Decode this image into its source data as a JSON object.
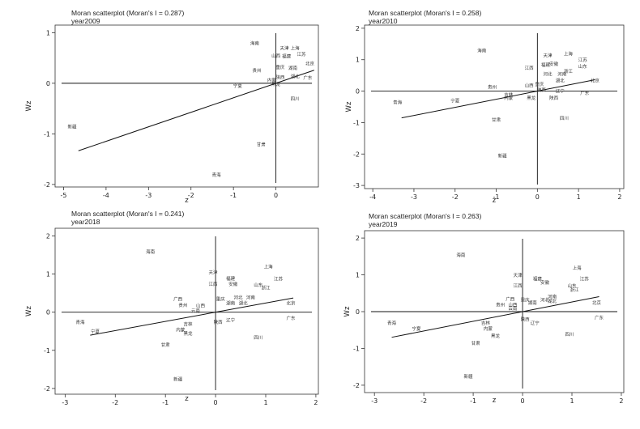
{
  "chart_data": [
    {
      "type": "scatter",
      "title": "Moran scatterplot (Moran's I = 0.287)",
      "subtitle": "year2009",
      "xlabel": "z",
      "ylabel": "Wz",
      "xlim": [
        -5.2,
        1.0
      ],
      "ylim": [
        -2.05,
        1.15
      ],
      "xticks": [
        -5,
        -4,
        -3,
        -2,
        -1,
        0
      ],
      "yticks": [
        -2,
        -1,
        0,
        1
      ],
      "regression": {
        "slope": 0.287,
        "x_range": [
          -4.65,
          0.9
        ]
      },
      "points": [
        {
          "label": "海南",
          "x": -0.5,
          "y": 0.8
        },
        {
          "label": "天津",
          "x": 0.2,
          "y": 0.7
        },
        {
          "label": "上海",
          "x": 0.45,
          "y": 0.7
        },
        {
          "label": "江苏",
          "x": 0.6,
          "y": 0.58
        },
        {
          "label": "山西",
          "x": 0.0,
          "y": 0.55
        },
        {
          "label": "福建",
          "x": 0.25,
          "y": 0.54
        },
        {
          "label": "北京",
          "x": 0.8,
          "y": 0.4
        },
        {
          "label": "贵州",
          "x": -0.45,
          "y": 0.26
        },
        {
          "label": "重庆",
          "x": 0.1,
          "y": 0.33
        },
        {
          "label": "湖南",
          "x": 0.4,
          "y": 0.31
        },
        {
          "label": "陕西",
          "x": 0.1,
          "y": 0.13
        },
        {
          "label": "湖北",
          "x": 0.45,
          "y": 0.14
        },
        {
          "label": "广东",
          "x": 0.75,
          "y": 0.12
        },
        {
          "label": "宁夏",
          "x": -0.9,
          "y": -0.04
        },
        {
          "label": "内蒙",
          "x": -0.1,
          "y": 0.07
        },
        {
          "label": "黑龙",
          "x": 0.0,
          "y": -0.01
        },
        {
          "label": "四川",
          "x": 0.45,
          "y": -0.3
        },
        {
          "label": "新疆",
          "x": -4.8,
          "y": -0.85
        },
        {
          "label": "甘肃",
          "x": -0.35,
          "y": -1.2
        },
        {
          "label": "青海",
          "x": -1.4,
          "y": -1.8
        }
      ]
    },
    {
      "type": "scatter",
      "title": "Moran scatterplot (Moran's I = 0.258)",
      "subtitle": "year2010",
      "xlabel": "z",
      "ylabel": "Wz",
      "xlim": [
        -4.2,
        2.1
      ],
      "ylim": [
        -3.1,
        2.1
      ],
      "xticks": [
        -4,
        -3,
        -2,
        -1,
        0,
        1,
        2
      ],
      "yticks": [
        -3,
        -2,
        -1,
        0,
        1,
        2
      ],
      "regression": {
        "slope": 0.258,
        "x_range": [
          -3.3,
          1.4
        ]
      },
      "points": [
        {
          "label": "海南",
          "x": -1.35,
          "y": 1.3
        },
        {
          "label": "天津",
          "x": 0.25,
          "y": 1.15
        },
        {
          "label": "上海",
          "x": 0.75,
          "y": 1.2
        },
        {
          "label": "江苏",
          "x": 1.1,
          "y": 1.0
        },
        {
          "label": "安徽",
          "x": 0.4,
          "y": 0.88
        },
        {
          "label": "福建",
          "x": 0.2,
          "y": 0.85
        },
        {
          "label": "山东",
          "x": 1.1,
          "y": 0.8
        },
        {
          "label": "浙江",
          "x": 0.75,
          "y": 0.65
        },
        {
          "label": "江西",
          "x": -0.2,
          "y": 0.75
        },
        {
          "label": "河北",
          "x": 0.25,
          "y": 0.55
        },
        {
          "label": "河南",
          "x": 0.6,
          "y": 0.55
        },
        {
          "label": "北京",
          "x": 1.4,
          "y": 0.35
        },
        {
          "label": "湖北",
          "x": 0.55,
          "y": 0.35
        },
        {
          "label": "山西",
          "x": -0.2,
          "y": 0.2
        },
        {
          "label": "重庆",
          "x": 0.05,
          "y": 0.23
        },
        {
          "label": "贵州",
          "x": -1.1,
          "y": 0.15
        },
        {
          "label": "陕西",
          "x": 0.1,
          "y": 0.05
        },
        {
          "label": "辽宁",
          "x": 0.55,
          "y": 0.02
        },
        {
          "label": "广东",
          "x": 1.15,
          "y": -0.05
        },
        {
          "label": "吉林",
          "x": -0.7,
          "y": -0.1
        },
        {
          "label": "内蒙",
          "x": -0.7,
          "y": -0.2
        },
        {
          "label": "黑龙",
          "x": -0.15,
          "y": -0.2
        },
        {
          "label": "陕西",
          "x": 0.4,
          "y": -0.2
        },
        {
          "label": "宁夏",
          "x": -2.0,
          "y": -0.3
        },
        {
          "label": "青海",
          "x": -3.4,
          "y": -0.35
        },
        {
          "label": "四川",
          "x": 0.65,
          "y": -0.85
        },
        {
          "label": "甘肃",
          "x": -1.0,
          "y": -0.9
        },
        {
          "label": "新疆",
          "x": -0.85,
          "y": -2.05
        }
      ]
    },
    {
      "type": "scatter",
      "title": "Moran scatterplot (Moran's I = 0.241)",
      "subtitle": "year2018",
      "xlabel": "z",
      "ylabel": "Wz",
      "xlim": [
        -3.2,
        2.05
      ],
      "ylim": [
        -2.15,
        2.2
      ],
      "xticks": [
        -3,
        -2,
        -1,
        0,
        1,
        2
      ],
      "yticks": [
        -2,
        -1,
        0,
        1,
        2
      ],
      "regression": {
        "slope": 0.241,
        "x_range": [
          -2.5,
          1.55
        ]
      },
      "points": [
        {
          "label": "海南",
          "x": -1.3,
          "y": 1.6
        },
        {
          "label": "上海",
          "x": 1.05,
          "y": 1.2
        },
        {
          "label": "天津",
          "x": -0.05,
          "y": 1.05
        },
        {
          "label": "福建",
          "x": 0.3,
          "y": 0.9
        },
        {
          "label": "江苏",
          "x": 1.25,
          "y": 0.88
        },
        {
          "label": "安徽",
          "x": 0.35,
          "y": 0.75
        },
        {
          "label": "江西",
          "x": -0.05,
          "y": 0.75
        },
        {
          "label": "山东",
          "x": 0.85,
          "y": 0.72
        },
        {
          "label": "浙江",
          "x": 1.0,
          "y": 0.65
        },
        {
          "label": "广西",
          "x": -0.75,
          "y": 0.35
        },
        {
          "label": "重庆",
          "x": 0.1,
          "y": 0.35
        },
        {
          "label": "河北",
          "x": 0.45,
          "y": 0.4
        },
        {
          "label": "河南",
          "x": 0.7,
          "y": 0.4
        },
        {
          "label": "北京",
          "x": 1.5,
          "y": 0.25
        },
        {
          "label": "贵州",
          "x": -0.65,
          "y": 0.2
        },
        {
          "label": "山西",
          "x": -0.3,
          "y": 0.18
        },
        {
          "label": "云南",
          "x": -0.4,
          "y": 0.05
        },
        {
          "label": "湖南",
          "x": 0.3,
          "y": 0.25
        },
        {
          "label": "湖北",
          "x": 0.55,
          "y": 0.25
        },
        {
          "label": "广东",
          "x": 1.5,
          "y": -0.15
        },
        {
          "label": "吉林",
          "x": -0.55,
          "y": -0.3
        },
        {
          "label": "陕西",
          "x": 0.05,
          "y": -0.25
        },
        {
          "label": "辽宁",
          "x": 0.3,
          "y": -0.2
        },
        {
          "label": "内蒙",
          "x": -0.7,
          "y": -0.45
        },
        {
          "label": "黑龙",
          "x": -0.55,
          "y": -0.55
        },
        {
          "label": "青海",
          "x": -2.7,
          "y": -0.25
        },
        {
          "label": "宁夏",
          "x": -2.4,
          "y": -0.5
        },
        {
          "label": "四川",
          "x": 0.85,
          "y": -0.65
        },
        {
          "label": "甘肃",
          "x": -1.0,
          "y": -0.85
        },
        {
          "label": "新疆",
          "x": -0.75,
          "y": -1.75
        }
      ]
    },
    {
      "type": "scatter",
      "title": "Moran scatterplot (Moran's I = 0.263)",
      "subtitle": "year2019",
      "xlabel": "z",
      "ylabel": "Wz",
      "xlim": [
        -3.2,
        2.05
      ],
      "ylim": [
        -2.2,
        2.2
      ],
      "xticks": [
        -3,
        -2,
        -1,
        0,
        1,
        2
      ],
      "yticks": [
        -2,
        -1,
        0,
        1,
        2
      ],
      "regression": {
        "slope": 0.263,
        "x_range": [
          -2.65,
          1.55
        ]
      },
      "points": [
        {
          "label": "海南",
          "x": -1.25,
          "y": 1.55
        },
        {
          "label": "上海",
          "x": 1.1,
          "y": 1.2
        },
        {
          "label": "天津",
          "x": -0.1,
          "y": 1.0
        },
        {
          "label": "福建",
          "x": 0.3,
          "y": 0.9
        },
        {
          "label": "江苏",
          "x": 1.25,
          "y": 0.9
        },
        {
          "label": "安徽",
          "x": 0.45,
          "y": 0.8
        },
        {
          "label": "江西",
          "x": -0.1,
          "y": 0.72
        },
        {
          "label": "山东",
          "x": 1.0,
          "y": 0.72
        },
        {
          "label": "浙江",
          "x": 1.05,
          "y": 0.6
        },
        {
          "label": "河南",
          "x": 0.6,
          "y": 0.42
        },
        {
          "label": "广西",
          "x": -0.25,
          "y": 0.35
        },
        {
          "label": "重庆",
          "x": 0.05,
          "y": 0.33
        },
        {
          "label": "河北",
          "x": 0.45,
          "y": 0.33
        },
        {
          "label": "湖北",
          "x": 0.6,
          "y": 0.3
        },
        {
          "label": "贵州",
          "x": -0.45,
          "y": 0.2
        },
        {
          "label": "山西",
          "x": -0.2,
          "y": 0.2
        },
        {
          "label": "云南",
          "x": -0.2,
          "y": 0.1
        },
        {
          "label": "湖南",
          "x": 0.2,
          "y": 0.25
        },
        {
          "label": "北京",
          "x": 1.5,
          "y": 0.25
        },
        {
          "label": "广东",
          "x": 1.55,
          "y": -0.15
        },
        {
          "label": "吉林",
          "x": -0.75,
          "y": -0.3
        },
        {
          "label": "陕西",
          "x": 0.05,
          "y": -0.2
        },
        {
          "label": "辽宁",
          "x": 0.25,
          "y": -0.3
        },
        {
          "label": "内蒙",
          "x": -0.7,
          "y": -0.45
        },
        {
          "label": "黑龙",
          "x": -0.55,
          "y": -0.65
        },
        {
          "label": "青海",
          "x": -2.65,
          "y": -0.3
        },
        {
          "label": "宁夏",
          "x": -2.15,
          "y": -0.45
        },
        {
          "label": "四川",
          "x": 0.95,
          "y": -0.6
        },
        {
          "label": "甘肃",
          "x": -0.95,
          "y": -0.85
        },
        {
          "label": "新疆",
          "x": -1.1,
          "y": -1.75
        }
      ]
    }
  ]
}
